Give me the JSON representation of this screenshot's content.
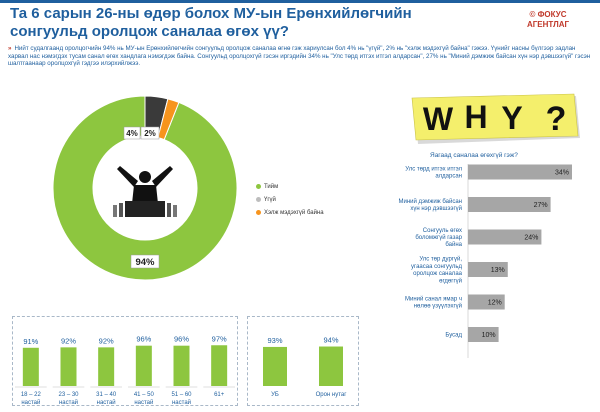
{
  "title": "Та 6 сарын 26-ны өдөр болох МУ-ын Ерөнхийлөгчийн сонгуульд оролцож саналаа өгөх үү?",
  "brand": {
    "line1": "© ФОКУС",
    "line2": "АГЕНТЛАГ"
  },
  "intro": {
    "mark": "»",
    "text": "Нийт судалгаанд оролцогчийн 94% нь МУ-ын Ерөнхийлөгчийн сонгуульд оролцож саналаа өгнө гэж хариулсан бол 4% нь \"үгүй\", 2% нь \"хэлж мэдэхгүй байна\" гэжээ. Үүнийг насны бүлгээр задлан харвал нас нэмэгдэх тусам санал өгөх хандлага нэмэгдэж байна. Сонгуульд оролцохгүй гэсэн иргэдийн 34% нь \"Улс төрд итгэх итгэл алдарсан\", 27% нь \"Миний дэмжиж байсан хүн нэр дэвшээгүй\" гэсэн шалтгаанаар оролцохгүй гэдгээ илэрхийлжээ."
  },
  "why_note": {
    "letters": [
      "W",
      "H",
      "Y",
      "?"
    ]
  },
  "colors": {
    "yes": "#8dc63f",
    "no": "#3a3a3a",
    "dk": "#f7941d",
    "bar_grey": "#a6a6a6",
    "title": "#1f5f9e",
    "sticky": "#f4ef6c"
  },
  "chart_data": [
    {
      "type": "pie",
      "labels": [
        "Тийм",
        "Үгүй",
        "Хэлж мэдэхгүй байна"
      ],
      "values": [
        94,
        4,
        2
      ],
      "data_labels": [
        "94%",
        "4%",
        "2%"
      ]
    },
    {
      "type": "bar",
      "orientation": "horizontal",
      "title": "Яагаад саналаа өгөхгүй гэж?",
      "categories": [
        "Улс төрд итгэх итгэл алдарсан",
        "Миний дэмжиж байсан хүн нэр дэвшээгүй",
        "Сонгууль өгөх боломжгүй газар байна",
        "Улс төр дургүй, угаасаа сонгуульд оролцож саналаа өгдөггүй",
        "Миний санал ямар ч нөлөө үзүүлэхгүй",
        "Бусад"
      ],
      "values": [
        34,
        27,
        24,
        13,
        12,
        10
      ],
      "data_labels": [
        "34%",
        "27%",
        "24%",
        "13%",
        "12%",
        "10%"
      ]
    },
    {
      "type": "bar",
      "categories": [
        [
          "18 – 22",
          "настай"
        ],
        [
          "23 – 30",
          "настай"
        ],
        [
          "31 – 40",
          "настай"
        ],
        [
          "41 – 50",
          "настай"
        ],
        [
          "51 – 60",
          "настай"
        ],
        [
          "61+",
          ""
        ]
      ],
      "values": [
        91,
        92,
        92,
        96,
        96,
        97
      ],
      "data_labels": [
        "91%",
        "92%",
        "92%",
        "96%",
        "96%",
        "97%"
      ]
    },
    {
      "type": "bar",
      "categories": [
        "УБ",
        "Орон нутаг"
      ],
      "values": [
        93,
        94
      ],
      "data_labels": [
        "93%",
        "94%"
      ]
    }
  ]
}
